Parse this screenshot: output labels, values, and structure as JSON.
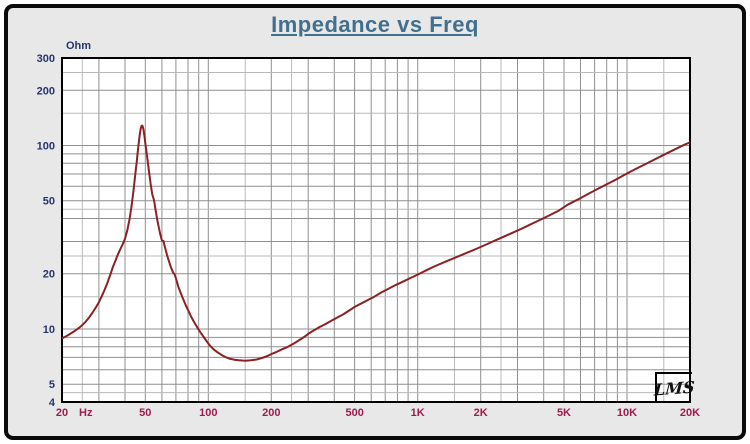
{
  "window": {
    "background": "#e8e8e8",
    "border_color": "#0a0a0a",
    "plot_background": "#ffffff",
    "plot_border_color": "#000000"
  },
  "title": {
    "text": "Impedance vs Freq",
    "color": "#41708e"
  },
  "logo": {
    "text": "LMS"
  },
  "chart_data": {
    "type": "line",
    "title": "Impedance vs Freq",
    "x_axis": {
      "label": "Hz",
      "scale": "log",
      "min": 20,
      "max": 20000,
      "label_color": "#9e1b50",
      "ticks": [
        {
          "value": 20,
          "label": "20"
        },
        {
          "value": 50,
          "label": "50"
        },
        {
          "value": 100,
          "label": "100"
        },
        {
          "value": 200,
          "label": "200"
        },
        {
          "value": 500,
          "label": "500"
        },
        {
          "value": 1000,
          "label": "1K"
        },
        {
          "value": 2000,
          "label": "2K"
        },
        {
          "value": 5000,
          "label": "5K"
        },
        {
          "value": 10000,
          "label": "10K"
        },
        {
          "value": 20000,
          "label": "20K"
        }
      ]
    },
    "y_axis": {
      "label": "Ohm",
      "scale": "log",
      "min": 4,
      "max": 300,
      "label_color": "#27356b",
      "ticks": [
        {
          "value": 300,
          "label": "300"
        },
        {
          "value": 200,
          "label": "200"
        },
        {
          "value": 100,
          "label": "100"
        },
        {
          "value": 50,
          "label": "50"
        },
        {
          "value": 20,
          "label": "20"
        },
        {
          "value": 10,
          "label": "10"
        },
        {
          "value": 5,
          "label": "5"
        },
        {
          "value": 4,
          "label": "4"
        }
      ]
    },
    "grid": {
      "on": true,
      "x_steps": [
        1,
        1.5,
        2,
        2.5,
        3,
        4,
        5,
        6,
        7,
        8,
        9
      ],
      "y_steps": [
        1,
        1.5,
        2,
        2.5,
        3,
        4,
        4.5,
        5,
        6,
        7,
        8,
        9
      ],
      "light_steps": [
        1.5,
        2.5,
        4.5
      ],
      "color": "#8f8f8f",
      "color_light": "#bababa"
    },
    "series": [
      {
        "name": "Impedance",
        "color": "#8b2123",
        "points": [
          [
            20,
            8.9
          ],
          [
            21,
            9.15
          ],
          [
            22,
            9.45
          ],
          [
            23,
            9.75
          ],
          [
            24,
            10.1
          ],
          [
            25,
            10.5
          ],
          [
            26,
            11.0
          ],
          [
            27,
            11.6
          ],
          [
            28,
            12.3
          ],
          [
            29,
            13.1
          ],
          [
            30,
            14.0
          ],
          [
            31,
            15.1
          ],
          [
            32,
            16.4
          ],
          [
            33,
            17.9
          ],
          [
            34,
            19.7
          ],
          [
            35,
            21.8
          ],
          [
            36,
            23.5
          ],
          [
            37,
            25.5
          ],
          [
            38,
            27.3
          ],
          [
            39,
            29.0
          ],
          [
            40,
            31.0
          ],
          [
            41,
            34.5
          ],
          [
            42,
            39.5
          ],
          [
            43,
            47.0
          ],
          [
            44,
            58.0
          ],
          [
            45,
            73.0
          ],
          [
            45.5,
            81.0
          ],
          [
            46,
            92.0
          ],
          [
            46.5,
            103.0
          ],
          [
            47,
            114.0
          ],
          [
            47.5,
            123.0
          ],
          [
            48,
            128.0
          ],
          [
            48.3,
            128.5
          ],
          [
            48.6,
            127.0
          ],
          [
            49,
            122.0
          ],
          [
            49.5,
            113.0
          ],
          [
            50,
            103.0
          ],
          [
            50.5,
            95.0
          ],
          [
            51,
            87.0
          ],
          [
            52,
            73.0
          ],
          [
            53,
            62.0
          ],
          [
            54,
            54.0
          ],
          [
            55,
            50.5
          ],
          [
            56,
            44.5
          ],
          [
            57,
            39.5
          ],
          [
            58,
            35.8
          ],
          [
            59,
            32.8
          ],
          [
            60,
            30.4
          ],
          [
            61,
            30.2
          ],
          [
            62,
            28.0
          ],
          [
            63,
            26.2
          ],
          [
            64,
            24.6
          ],
          [
            65,
            23.2
          ],
          [
            66,
            22.0
          ],
          [
            68,
            20.2
          ],
          [
            69,
            19.9
          ],
          [
            70,
            18.9
          ],
          [
            72,
            16.9
          ],
          [
            75,
            15.0
          ],
          [
            78,
            13.5
          ],
          [
            80,
            12.7
          ],
          [
            83,
            11.6
          ],
          [
            86,
            10.8
          ],
          [
            90,
            9.9
          ],
          [
            94,
            9.2
          ],
          [
            98,
            8.6
          ],
          [
            102,
            8.1
          ],
          [
            106,
            7.75
          ],
          [
            110,
            7.5
          ],
          [
            115,
            7.25
          ],
          [
            120,
            7.05
          ],
          [
            126,
            6.9
          ],
          [
            133,
            6.8
          ],
          [
            140,
            6.75
          ],
          [
            150,
            6.72
          ],
          [
            160,
            6.75
          ],
          [
            170,
            6.82
          ],
          [
            180,
            6.95
          ],
          [
            190,
            7.1
          ],
          [
            200,
            7.3
          ],
          [
            212,
            7.5
          ],
          [
            225,
            7.75
          ],
          [
            240,
            8.0
          ],
          [
            255,
            8.3
          ],
          [
            270,
            8.65
          ],
          [
            285,
            9.0
          ],
          [
            300,
            9.4
          ],
          [
            320,
            9.85
          ],
          [
            340,
            10.25
          ],
          [
            360,
            10.6
          ],
          [
            385,
            11.05
          ],
          [
            410,
            11.5
          ],
          [
            440,
            12.0
          ],
          [
            470,
            12.6
          ],
          [
            500,
            13.2
          ],
          [
            540,
            13.8
          ],
          [
            580,
            14.4
          ],
          [
            620,
            15.0
          ],
          [
            670,
            15.8
          ],
          [
            720,
            16.5
          ],
          [
            780,
            17.3
          ],
          [
            840,
            18.0
          ],
          [
            900,
            18.7
          ],
          [
            1000,
            19.8
          ],
          [
            1100,
            20.9
          ],
          [
            1200,
            21.9
          ],
          [
            1350,
            23.2
          ],
          [
            1500,
            24.4
          ],
          [
            1700,
            25.9
          ],
          [
            1900,
            27.3
          ],
          [
            2100,
            28.7
          ],
          [
            2400,
            30.7
          ],
          [
            2700,
            32.6
          ],
          [
            3000,
            34.4
          ],
          [
            3400,
            36.8
          ],
          [
            3800,
            39.1
          ],
          [
            4200,
            41.3
          ],
          [
            4700,
            44.0
          ],
          [
            5200,
            47.5
          ],
          [
            5800,
            50.7
          ],
          [
            6400,
            53.8
          ],
          [
            7100,
            57.3
          ],
          [
            7900,
            61.0
          ],
          [
            8800,
            65.0
          ],
          [
            9800,
            69.5
          ],
          [
            11000,
            74.5
          ],
          [
            12000,
            78.3
          ],
          [
            13500,
            83.8
          ],
          [
            15000,
            89.0
          ],
          [
            17000,
            95.5
          ],
          [
            19000,
            101.5
          ],
          [
            20000,
            104.0
          ]
        ]
      }
    ]
  }
}
